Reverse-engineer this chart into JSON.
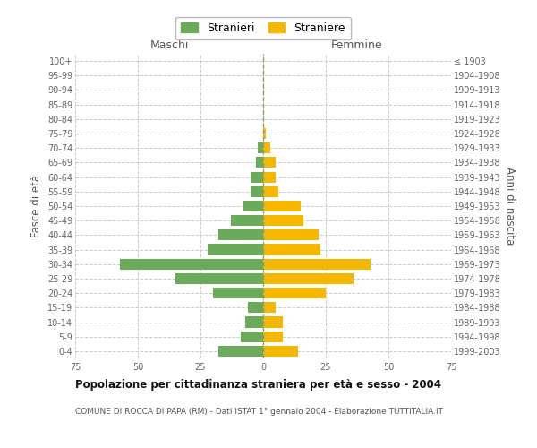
{
  "age_groups": [
    "0-4",
    "5-9",
    "10-14",
    "15-19",
    "20-24",
    "25-29",
    "30-34",
    "35-39",
    "40-44",
    "45-49",
    "50-54",
    "55-59",
    "60-64",
    "65-69",
    "70-74",
    "75-79",
    "80-84",
    "85-89",
    "90-94",
    "95-99",
    "100+"
  ],
  "birth_years": [
    "1999-2003",
    "1994-1998",
    "1989-1993",
    "1984-1988",
    "1979-1983",
    "1974-1978",
    "1969-1973",
    "1964-1968",
    "1959-1963",
    "1954-1958",
    "1949-1953",
    "1944-1948",
    "1939-1943",
    "1934-1938",
    "1929-1933",
    "1924-1928",
    "1919-1923",
    "1914-1918",
    "1909-1913",
    "1904-1908",
    "≤ 1903"
  ],
  "maschi": [
    18,
    9,
    7,
    6,
    20,
    35,
    57,
    22,
    18,
    13,
    8,
    5,
    5,
    3,
    2,
    0,
    0,
    0,
    0,
    0,
    0
  ],
  "femmine": [
    14,
    8,
    8,
    5,
    25,
    36,
    43,
    23,
    22,
    16,
    15,
    6,
    5,
    5,
    3,
    1,
    0,
    0,
    0,
    0,
    0
  ],
  "maschi_color": "#6aaa5a",
  "femmine_color": "#f5b800",
  "center_line_color": "#999966",
  "background_color": "#ffffff",
  "grid_color": "#cccccc",
  "title": "Popolazione per cittadinanza straniera per età e sesso - 2004",
  "subtitle": "COMUNE DI ROCCA DI PAPA (RM) - Dati ISTAT 1° gennaio 2004 - Elaborazione TUTTITALIA.IT",
  "xlabel_left": "Maschi",
  "xlabel_right": "Femmine",
  "ylabel_left": "Fasce di età",
  "ylabel_right": "Anni di nascita",
  "xlim": 75,
  "legend_maschi": "Stranieri",
  "legend_femmine": "Straniere"
}
